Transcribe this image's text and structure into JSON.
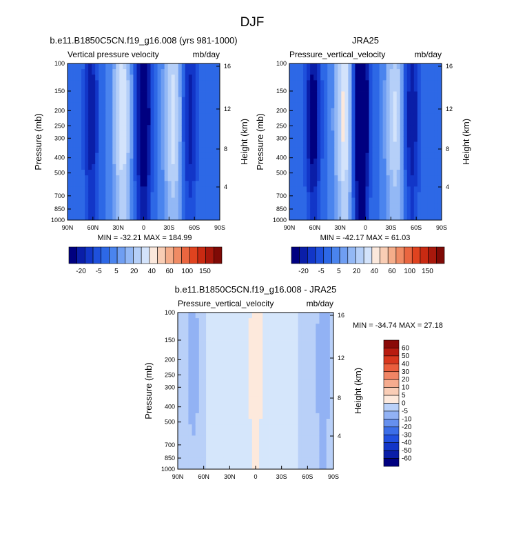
{
  "figure": {
    "main_title": "DJF"
  },
  "palette": {
    "top": [
      "#000080",
      "#0a1ea8",
      "#1236c8",
      "#1e50dc",
      "#2d68e6",
      "#4a84ee",
      "#6f9ef2",
      "#93b8f5",
      "#b5cff8",
      "#d3e3fb",
      "#fbe8dc",
      "#f9cdb4",
      "#f5ad8a",
      "#f08b64",
      "#ea6640",
      "#e0431f",
      "#c92a12",
      "#a8180c",
      "#7f0a06"
    ],
    "diff": [
      "#000080",
      "#0a1ea8",
      "#1236c8",
      "#2150e0",
      "#3c6ee8",
      "#6690ee",
      "#92b2f4",
      "#b9d0f8",
      "#d5e6fb",
      "#fde9dc",
      "#f9cdb6",
      "#f5ab8e",
      "#f08565",
      "#ea5e3d",
      "#d8371e",
      "#b81b10",
      "#8a0a08"
    ]
  },
  "chart_data": [
    {
      "type": "heatmap",
      "title": "b.e11.B1850C5CN.f19_g16.008 (yrs 981-1000)",
      "left_label": "Vertical pressure velocity",
      "right_label": "mb/day",
      "ylabel": "Pressure (mb)",
      "y2label": "Height (km)",
      "x_ticks": [
        "90N",
        "60N",
        "30N",
        "0",
        "30S",
        "60S",
        "90S"
      ],
      "y_ticks": [
        "100",
        "150",
        "200",
        "250",
        "300",
        "400",
        "500",
        "700",
        "850",
        "1000"
      ],
      "y2_ticks": [
        "16",
        "12",
        "8",
        "4"
      ],
      "y_log": true,
      "ylim": [
        1000,
        100
      ],
      "xlim": [
        90,
        -90
      ],
      "stats": "MIN = -32.21   MAX = 184.99",
      "colorbar": {
        "orientation": "horizontal",
        "labels": [
          "-20",
          "-5",
          "5",
          "20",
          "40",
          "60",
          "100",
          "150"
        ]
      },
      "field_features": [
        {
          "lat": 0,
          "value": -32
        },
        {
          "lat": 25,
          "value": 20
        },
        {
          "lat": 62,
          "value": -20
        },
        {
          "lat": -35,
          "value": 18
        },
        {
          "lat": -55,
          "value": -18
        }
      ]
    },
    {
      "type": "heatmap",
      "title": "JRA25",
      "left_label": "Pressure_vertical_velocity",
      "right_label": "mb/day",
      "ylabel": "Pressure (mb)",
      "y2label": "Height (km)",
      "x_ticks": [
        "90N",
        "60N",
        "30N",
        "0",
        "30S",
        "60S",
        "90S"
      ],
      "y_ticks": [
        "100",
        "150",
        "200",
        "250",
        "300",
        "400",
        "500",
        "700",
        "850",
        "1000"
      ],
      "y2_ticks": [
        "16",
        "12",
        "8",
        "4"
      ],
      "y_log": true,
      "ylim": [
        1000,
        100
      ],
      "xlim": [
        90,
        -90
      ],
      "stats": "MIN = -42.17   MAX =  61.03",
      "colorbar": {
        "orientation": "horizontal",
        "labels": [
          "-20",
          "-5",
          "5",
          "20",
          "40",
          "60",
          "100",
          "150"
        ]
      },
      "field_features": [
        {
          "lat": 5,
          "value": -42
        },
        {
          "lat": 25,
          "value": 22
        },
        {
          "lat": 62,
          "value": -25
        },
        {
          "lat": -35,
          "value": 16
        },
        {
          "lat": -55,
          "value": -20
        }
      ]
    },
    {
      "type": "heatmap",
      "title": "b.e11.B1850C5CN.f19_g16.008 - JRA25",
      "left_label": "Pressure_vertical_velocity",
      "right_label": "mb/day",
      "ylabel": "Pressure (mb)",
      "y2label": "Height (km)",
      "x_ticks": [
        "90N",
        "60N",
        "30N",
        "0",
        "30S",
        "60S",
        "90S"
      ],
      "y_ticks": [
        "100",
        "150",
        "200",
        "250",
        "300",
        "400",
        "500",
        "700",
        "850",
        "1000"
      ],
      "y2_ticks": [
        "16",
        "12",
        "8",
        "4"
      ],
      "y_log": true,
      "ylim": [
        1000,
        100
      ],
      "xlim": [
        90,
        -90
      ],
      "stats": "MIN = -34.74   MAX =  27.18",
      "colorbar": {
        "orientation": "vertical",
        "labels": [
          "60",
          "50",
          "40",
          "30",
          "20",
          "10",
          "5",
          "0",
          "-5",
          "-10",
          "-20",
          "-30",
          "-40",
          "-50",
          "-60"
        ]
      },
      "field_features": [
        {
          "lat": 0,
          "value": 10
        },
        {
          "lat": 72,
          "value": -8
        },
        {
          "lat": -78,
          "value": -10
        },
        {
          "lat": 42,
          "value": 3
        },
        {
          "lat": -20,
          "value": 3
        }
      ]
    }
  ]
}
